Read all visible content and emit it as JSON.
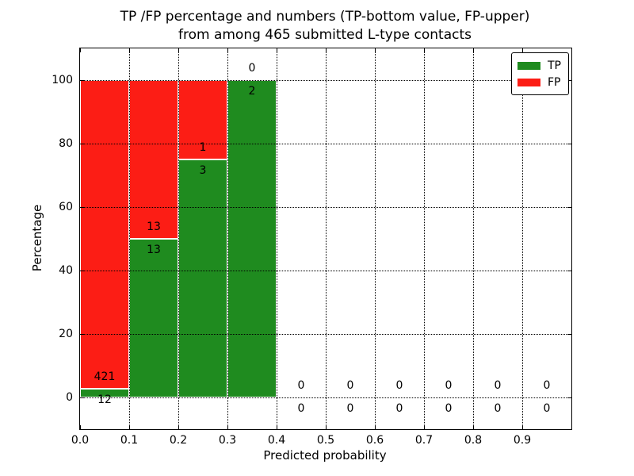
{
  "title": {
    "line1": "TP /FP percentage and numbers (TP-bottom value, FP-upper)",
    "line2": "from among 465 submitted L-type contacts"
  },
  "axes": {
    "xlabel": "Predicted probability",
    "ylabel": "Percentage",
    "x_tick_labels": [
      "0.0",
      "0.1",
      "0.2",
      "0.3",
      "0.4",
      "0.5",
      "0.6",
      "0.7",
      "0.8",
      "0.9"
    ],
    "y_tick_labels": [
      "0",
      "20",
      "40",
      "60",
      "80",
      "100"
    ]
  },
  "legend": {
    "items": [
      {
        "label": "TP",
        "color": "#1f8b1f"
      },
      {
        "label": "FP",
        "color": "#fc1d15"
      }
    ]
  },
  "colors": {
    "tp_green": "#1f8b1f",
    "fp_red": "#fc1d15",
    "bar_edge": "#ffffff",
    "grid": "#000000",
    "background": "#ffffff"
  },
  "chart_data": {
    "type": "bar",
    "stacked": true,
    "title": "TP /FP percentage and numbers (TP-bottom value, FP-upper) from among 465 submitted L-type contacts",
    "xlabel": "Predicted probability",
    "ylabel": "Percentage",
    "total_contacts": 465,
    "bin_width": 0.1,
    "bin_starts": [
      0.0,
      0.1,
      0.2,
      0.3,
      0.4,
      0.5,
      0.6,
      0.7,
      0.8,
      0.9
    ],
    "series": [
      {
        "name": "TP",
        "color": "#1f8b1f",
        "counts": [
          12,
          13,
          3,
          2,
          0,
          0,
          0,
          0,
          0,
          0
        ],
        "percent": [
          2.77,
          50,
          75,
          100,
          0,
          0,
          0,
          0,
          0,
          0
        ]
      },
      {
        "name": "FP",
        "color": "#fc1d15",
        "counts": [
          421,
          13,
          1,
          0,
          0,
          0,
          0,
          0,
          0,
          0
        ],
        "percent": [
          97.23,
          50,
          25,
          0,
          0,
          0,
          0,
          0,
          0,
          0
        ]
      }
    ],
    "x_ticks": [
      0.0,
      0.1,
      0.2,
      0.3,
      0.4,
      0.5,
      0.6,
      0.7,
      0.8,
      0.9
    ],
    "y_ticks": [
      0,
      20,
      40,
      60,
      80,
      100
    ],
    "xlim": [
      0,
      1
    ],
    "ylim": [
      -10,
      110
    ],
    "grid": true,
    "grid_style": "dotted",
    "legend_position": "upper right"
  }
}
